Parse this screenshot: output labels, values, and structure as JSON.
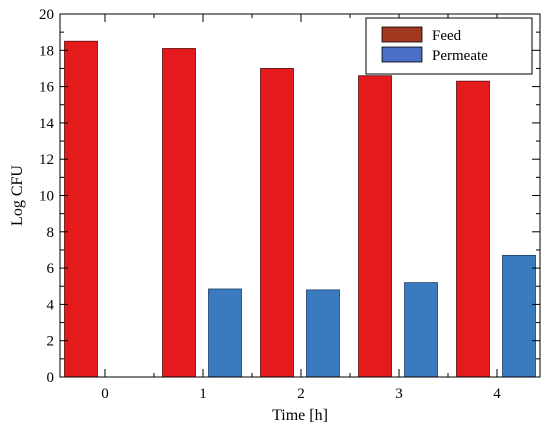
{
  "chart_data": {
    "type": "bar",
    "title": "",
    "xlabel": "Time [h]",
    "ylabel": "Log CFU",
    "categories": [
      "0",
      "1",
      "2",
      "3",
      "4"
    ],
    "ylim": [
      0,
      20
    ],
    "yticks": [
      0,
      2,
      4,
      6,
      8,
      10,
      12,
      14,
      16,
      18,
      20
    ],
    "grid": false,
    "legend_position": "top-right",
    "series": [
      {
        "name": "Feed",
        "values": [
          18.5,
          18.1,
          17.0,
          16.6,
          16.3
        ],
        "color": "#e41a1c",
        "legend_color": "#a0391f"
      },
      {
        "name": "Permeate",
        "values": [
          null,
          4.85,
          4.8,
          5.2,
          6.7
        ],
        "color": "#3a7bbf",
        "legend_color": "#4a6fc4"
      }
    ]
  }
}
